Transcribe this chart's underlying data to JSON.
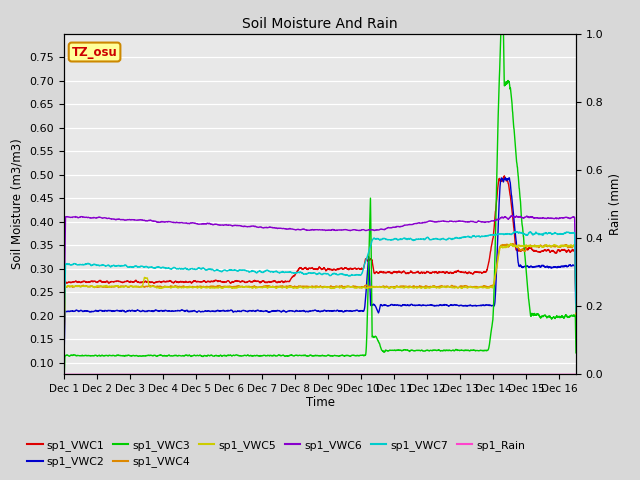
{
  "title": "Soil Moisture And Rain",
  "ylabel_left": "Soil Moisture (m3/m3)",
  "ylabel_right": "Rain (mm)",
  "xlabel": "Time",
  "ylim_left": [
    0.075,
    0.8
  ],
  "ylim_right": [
    0.0,
    1.0
  ],
  "xlim": [
    0,
    15.5
  ],
  "xtick_labels": [
    "Dec 1",
    "Dec 2",
    "Dec 3",
    "Dec 4",
    "Dec 5",
    "Dec 6",
    "Dec 7",
    "Dec 8",
    "Dec 9",
    "Dec 10",
    "Dec 11",
    "Dec 12",
    "Dec 13",
    "Dec 14",
    "Dec 15",
    "Dec 16"
  ],
  "yticks_left": [
    0.1,
    0.15,
    0.2,
    0.25,
    0.3,
    0.35,
    0.4,
    0.45,
    0.5,
    0.55,
    0.6,
    0.65,
    0.7,
    0.75
  ],
  "yticks_right": [
    0.0,
    0.2,
    0.4,
    0.6,
    0.8,
    1.0
  ],
  "station_label": "TZ_osu",
  "fig_bg_color": "#d8d8d8",
  "plot_bg_color": "#e8e8e8",
  "colors": {
    "VWC1": "#dd0000",
    "VWC2": "#0000cc",
    "VWC3": "#00cc00",
    "VWC4": "#dd8800",
    "VWC5": "#cccc00",
    "VWC6": "#8800cc",
    "VWC7": "#00cccc",
    "Rain": "#ff44cc"
  },
  "legend_row1": [
    "sp1_VWC1",
    "sp1_VWC2",
    "sp1_VWC3",
    "sp1_VWC4",
    "sp1_VWC5",
    "sp1_VWC6"
  ],
  "legend_row2": [
    "sp1_VWC7",
    "sp1_Rain"
  ]
}
